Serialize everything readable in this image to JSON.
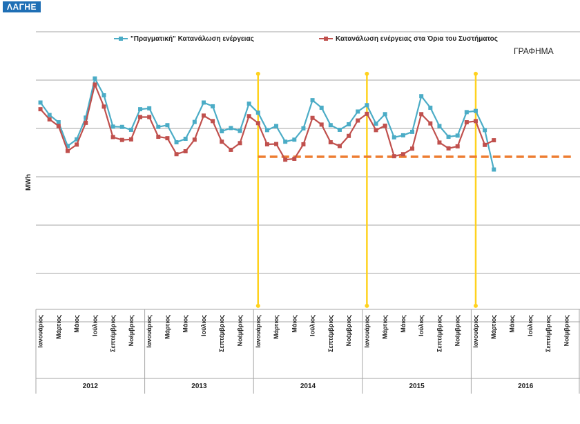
{
  "brand": {
    "logo_text": "ΛΑΓΗΕ"
  },
  "chart_data": {
    "type": "line",
    "title": "ΓΡΑΦΗΜΑ",
    "ylabel": "MWh",
    "xlabel": "",
    "ylim": [
      0,
      100
    ],
    "grid": true,
    "legend_position": "top",
    "years": [
      "2012",
      "2013",
      "2014",
      "2015",
      "2016"
    ],
    "month_ticks": [
      "Ιανουάριος",
      "Μάρτιος",
      "Μάιος",
      "Ιούλιος",
      "Σεπτέμβριος",
      "Νοέμβριος"
    ],
    "months_per_year": 12,
    "series": [
      {
        "name": "\"Πραγματική\" Κατανάλωση ενέργειας",
        "color": "#4bacc6",
        "values": [
          75.6,
          71.3,
          68.8,
          60.6,
          62.9,
          70.4,
          83.9,
          78.1,
          67.3,
          67.2,
          66.2,
          73.3,
          73.6,
          67.2,
          67.8,
          61.9,
          63.1,
          68.9,
          75.6,
          74.3,
          65.7,
          66.8,
          65.8,
          75.2,
          72.1,
          66.1,
          67.5,
          62.1,
          62.8,
          66.7,
          76.4,
          73.8,
          67.8,
          66.2,
          68.1,
          72.5,
          74.7,
          68.3,
          71.6,
          63.6,
          64.3,
          65.5,
          77.8,
          73.8,
          67.5,
          63.8,
          64.2,
          72.3,
          72.7,
          66.1,
          52.5
        ]
      },
      {
        "name": "Κατανάλωση ενέργειας στα Όρια του Συστήματος",
        "color": "#c0504d",
        "values": [
          73.3,
          69.8,
          67.5,
          58.9,
          61.1,
          68.6,
          81.8,
          74.2,
          63.7,
          62.7,
          62.9,
          70.6,
          70.6,
          63.8,
          63.3,
          57.8,
          58.8,
          62.8,
          71.1,
          69.2,
          62.1,
          59.3,
          61.6,
          70.9,
          68.5,
          61.2,
          61.3,
          55.9,
          56.2,
          61.2,
          70.3,
          68.0,
          61.9,
          60.6,
          64.1,
          69.4,
          71.7,
          66.1,
          67.6,
          57.1,
          57.8,
          59.7,
          71.6,
          68.4,
          61.8,
          59.8,
          60.5,
          68.8,
          69.2,
          61.0,
          62.6
        ]
      }
    ],
    "dashed_reference": {
      "value": 56.9,
      "from_index": 24,
      "to_index": 60,
      "color": "#ed7d31"
    },
    "vertical_markers": [
      24,
      36,
      48
    ],
    "marker_color": "#ffd21f"
  }
}
